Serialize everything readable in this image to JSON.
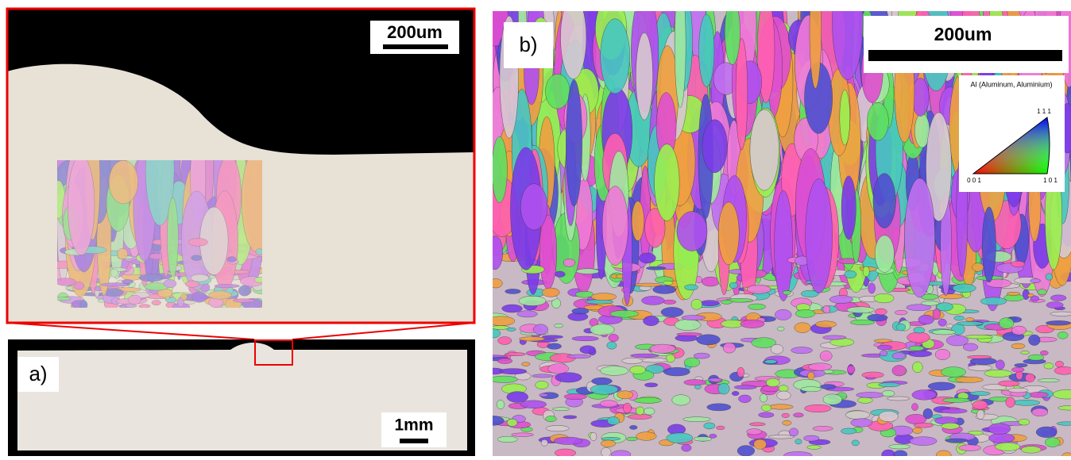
{
  "panel_a": {
    "label": "a)",
    "scale_bar": "1mm",
    "zoom_scale_bar": "200um"
  },
  "panel_b": {
    "label": "b)",
    "scale_bar": "200um",
    "legend": {
      "title": "Al (Aluminum, Aluminium)",
      "top": "1 1 1",
      "left": "0 0 1",
      "right": "1 0 1"
    }
  }
}
